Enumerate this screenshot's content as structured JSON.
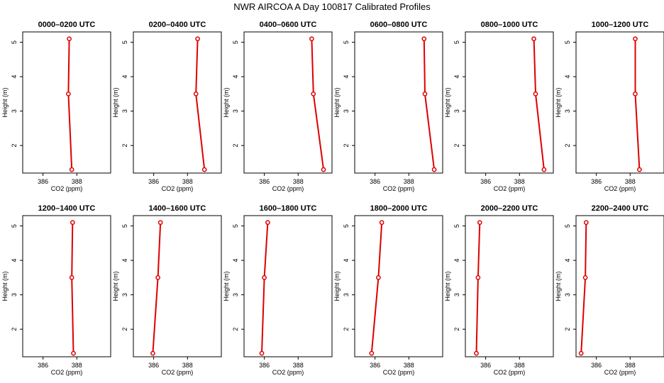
{
  "title": "NWR AIRCOA A  Day 100817  Calibrated Profiles",
  "chart_data": {
    "type": "line",
    "xlabel": "CO2 (ppm)",
    "ylabel": "Height (m)",
    "xlim": [
      384.8,
      390.0
    ],
    "ylim": [
      1.2,
      5.3
    ],
    "xticks": [
      386,
      388
    ],
    "yticks": [
      2,
      3,
      4,
      5
    ],
    "grid": false,
    "series_color": "#dd0000",
    "panels": [
      {
        "title": "0000–0200 UTC",
        "heights": [
          5.1,
          3.5,
          1.3
        ],
        "co2": [
          387.55,
          387.5,
          387.7
        ]
      },
      {
        "title": "0200–0400 UTC",
        "heights": [
          5.1,
          3.5,
          1.3
        ],
        "co2": [
          388.6,
          388.5,
          389.0
        ]
      },
      {
        "title": "0400–0600 UTC",
        "heights": [
          5.1,
          3.5,
          1.3
        ],
        "co2": [
          388.8,
          388.9,
          389.5
        ]
      },
      {
        "title": "0600–0800 UTC",
        "heights": [
          5.1,
          3.5,
          1.3
        ],
        "co2": [
          388.9,
          388.95,
          389.5
        ]
      },
      {
        "title": "0800–1000 UTC",
        "heights": [
          5.1,
          3.5,
          1.3
        ],
        "co2": [
          388.85,
          388.95,
          389.45
        ]
      },
      {
        "title": "1000–1200 UTC",
        "heights": [
          5.1,
          3.5,
          1.3
        ],
        "co2": [
          388.3,
          388.3,
          388.55
        ]
      },
      {
        "title": "1200–1400 UTC",
        "heights": [
          5.1,
          3.5,
          1.3
        ],
        "co2": [
          387.75,
          387.7,
          387.8
        ]
      },
      {
        "title": "1400–1600 UTC",
        "heights": [
          5.1,
          3.5,
          1.3
        ],
        "co2": [
          386.4,
          386.25,
          385.95
        ]
      },
      {
        "title": "1600–1800 UTC",
        "heights": [
          5.1,
          3.5,
          1.3
        ],
        "co2": [
          386.2,
          386.0,
          385.85
        ]
      },
      {
        "title": "1800–2000 UTC",
        "heights": [
          5.1,
          3.5,
          1.3
        ],
        "co2": [
          386.4,
          386.2,
          385.8
        ]
      },
      {
        "title": "2000–2200 UTC",
        "heights": [
          5.1,
          3.5,
          1.3
        ],
        "co2": [
          385.65,
          385.55,
          385.45
        ]
      },
      {
        "title": "2200–2400 UTC",
        "heights": [
          5.1,
          3.5,
          1.3
        ],
        "co2": [
          385.4,
          385.35,
          385.1
        ]
      }
    ]
  }
}
